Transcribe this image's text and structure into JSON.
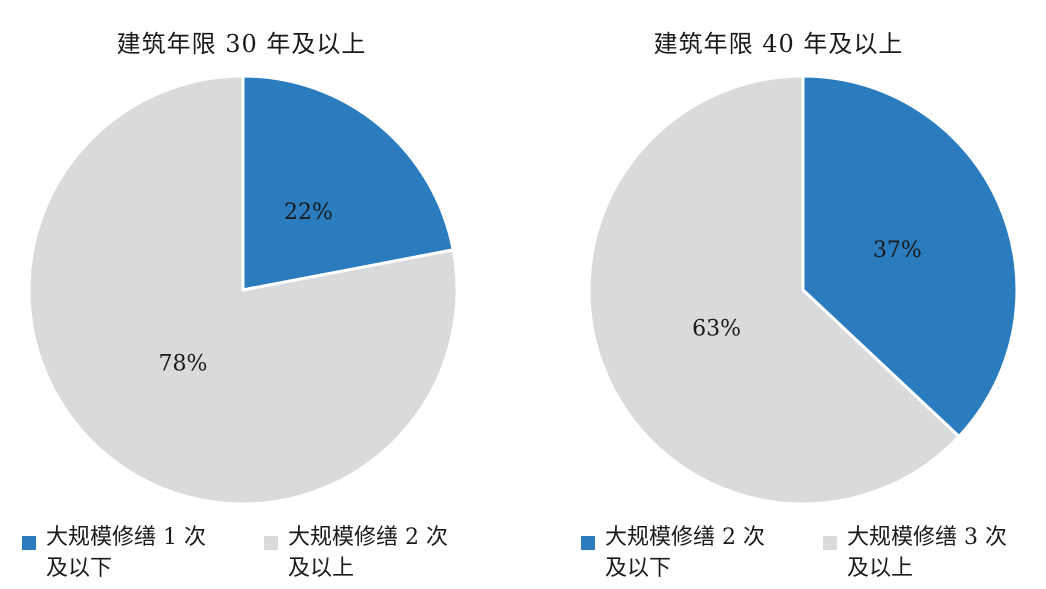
{
  "chart_data": [
    {
      "type": "pie",
      "title": "建筑年限 30 年及以上",
      "slices": [
        {
          "label": "大规模修缮 1 次及以下",
          "legend_lines": [
            "大规模修缮 1 次",
            "及以下"
          ],
          "value": 22,
          "value_label": "22%",
          "color": "#2b7bbf"
        },
        {
          "label": "大规模修缮 2 次及以上",
          "legend_lines": [
            "大规模修缮 2 次",
            "及以上"
          ],
          "value": 78,
          "value_label": "78%",
          "color": "#d8dadc"
        }
      ],
      "start_angle": "12 o'clock",
      "direction": "clockwise",
      "legend_placement": "bottom"
    },
    {
      "type": "pie",
      "title": "建筑年限 40 年及以上",
      "slices": [
        {
          "label": "大规模修缮 2 次及以下",
          "legend_lines": [
            "大规模修缮 2 次",
            "及以下"
          ],
          "value": 37,
          "value_label": "37%",
          "color": "#2b7bbf"
        },
        {
          "label": "大规模修缮 3 次及以上",
          "legend_lines": [
            "大规模修缮 3 次",
            "及以上"
          ],
          "value": 63,
          "value_label": "63%",
          "color": "#d8dadc"
        }
      ],
      "start_angle": "12 o'clock",
      "direction": "clockwise",
      "legend_placement": "bottom"
    }
  ]
}
